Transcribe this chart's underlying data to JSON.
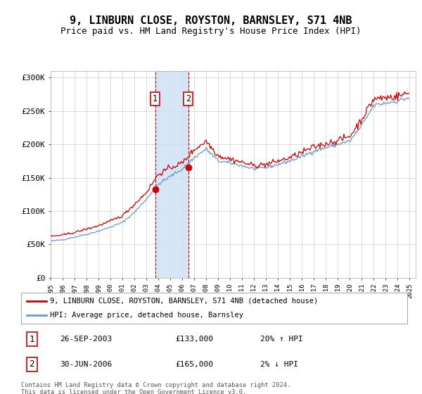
{
  "title": "9, LINBURN CLOSE, ROYSTON, BARNSLEY, S71 4NB",
  "subtitle": "Price paid vs. HM Land Registry's House Price Index (HPI)",
  "title_fontsize": 11,
  "subtitle_fontsize": 9,
  "ylabel_ticks": [
    "£0",
    "£50K",
    "£100K",
    "£150K",
    "£200K",
    "£250K",
    "£300K"
  ],
  "ytick_values": [
    0,
    50000,
    100000,
    150000,
    200000,
    250000,
    300000
  ],
  "ylim": [
    0,
    310000
  ],
  "xlim_start": 1995.0,
  "xlim_end": 2025.5,
  "xtick_years": [
    1995,
    1996,
    1997,
    1998,
    1999,
    2000,
    2001,
    2002,
    2003,
    2004,
    2005,
    2006,
    2007,
    2008,
    2009,
    2010,
    2011,
    2012,
    2013,
    2014,
    2015,
    2016,
    2017,
    2018,
    2019,
    2020,
    2021,
    2022,
    2023,
    2024,
    2025
  ],
  "transaction1_x": 2003.73,
  "transaction1_y": 133000,
  "transaction1_label": "1",
  "transaction1_date": "26-SEP-2003",
  "transaction1_price": "£133,000",
  "transaction1_hpi": "20% ↑ HPI",
  "transaction2_x": 2006.5,
  "transaction2_y": 165000,
  "transaction2_label": "2",
  "transaction2_date": "30-JUN-2006",
  "transaction2_price": "£165,000",
  "transaction2_hpi": "2% ↓ HPI",
  "shade_x1": 2003.73,
  "shade_x2": 2006.5,
  "marker_color": "#cc0000",
  "hpi_color": "#6699cc",
  "property_color": "#cc0000",
  "legend_property": "9, LINBURN CLOSE, ROYSTON, BARNSLEY, S71 4NB (detached house)",
  "legend_hpi": "HPI: Average price, detached house, Barnsley",
  "footnote1": "Contains HM Land Registry data © Crown copyright and database right 2024.",
  "footnote2": "This data is licensed under the Open Government Licence v3.0.",
  "background_color": "#ffffff",
  "grid_color": "#cccccc",
  "hpi_base": [
    55000,
    57000,
    61000,
    65000,
    70000,
    76000,
    83000,
    98000,
    118000,
    140000,
    152000,
    163000,
    180000,
    193000,
    175000,
    172000,
    168000,
    163000,
    165000,
    170000,
    175000,
    182000,
    190000,
    195000,
    200000,
    205000,
    228000,
    258000,
    262000,
    265000
  ],
  "prop_base": [
    62000,
    64000,
    68000,
    73000,
    78000,
    85000,
    93000,
    110000,
    128000,
    155000,
    165000,
    172000,
    192000,
    205000,
    183000,
    178000,
    173000,
    168000,
    170000,
    175000,
    180000,
    188000,
    196000,
    201000,
    206000,
    212000,
    238000,
    268000,
    270000,
    272000
  ]
}
